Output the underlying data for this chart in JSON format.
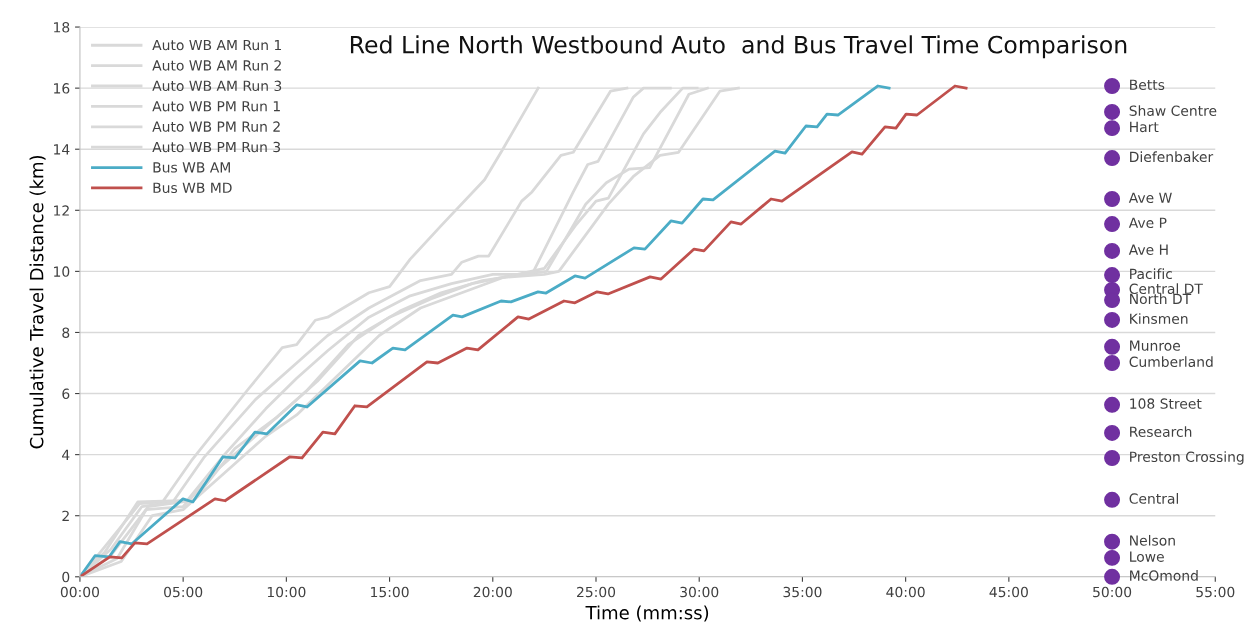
{
  "chart_data": {
    "type": "line",
    "title": "Red Line North Westbound Auto  and Bus Travel Time Comparison",
    "xlabel": "Time (mm:ss)",
    "ylabel": "Cumulative Travel Distance (km)",
    "xlim": [
      0,
      55
    ],
    "ylim": [
      0,
      18
    ],
    "xticks": [
      {
        "value": 0,
        "label": "00:00"
      },
      {
        "value": 5,
        "label": "05:00"
      },
      {
        "value": 10,
        "label": "10:00"
      },
      {
        "value": 15,
        "label": "15:00"
      },
      {
        "value": 20,
        "label": "20:00"
      },
      {
        "value": 25,
        "label": "25:00"
      },
      {
        "value": 30,
        "label": "30:00"
      },
      {
        "value": 35,
        "label": "35:00"
      },
      {
        "value": 40,
        "label": "40:00"
      },
      {
        "value": 45,
        "label": "45:00"
      },
      {
        "value": 50,
        "label": "50:00"
      },
      {
        "value": 55,
        "label": "55:00"
      }
    ],
    "yticks": [
      0,
      2,
      4,
      6,
      8,
      10,
      12,
      14,
      16,
      18
    ],
    "grid": "y",
    "legend": "top left",
    "line_style": "solid",
    "series": [
      {
        "name": "Auto WB AM Run 1",
        "color": "#d9d9d9",
        "x": [
          0,
          1.1,
          2.9,
          4.0,
          5.4,
          8.1,
          9.8,
          10.5,
          11.4,
          12.0,
          14.0,
          15.0,
          16.0,
          17.5,
          19.6,
          20.4,
          22.2
        ],
        "values": [
          0,
          0.9,
          2.4,
          2.45,
          3.8,
          6.1,
          7.5,
          7.6,
          8.4,
          8.5,
          9.3,
          9.5,
          10.4,
          11.5,
          13.0,
          13.9,
          16.0
        ]
      },
      {
        "name": "Auto WB AM Run 2",
        "color": "#d9d9d9",
        "x": [
          0,
          1.5,
          3.0,
          4.5,
          6.0,
          8.5,
          10.5,
          12,
          14,
          16.5,
          18,
          18.5,
          19.3,
          19.8,
          21.4,
          21.9,
          23.3,
          23.9,
          25.7,
          26.5
        ],
        "values": [
          0,
          0.9,
          2.3,
          2.45,
          3.9,
          5.8,
          7.0,
          7.9,
          8.8,
          9.7,
          9.9,
          10.3,
          10.5,
          10.5,
          12.3,
          12.6,
          13.8,
          13.9,
          15.9,
          16.0
        ]
      },
      {
        "name": "Auto WB AM Run 3",
        "color": "#d9d9d9",
        "x": [
          0,
          1.2,
          2.8,
          5.2,
          7,
          9,
          10.5,
          12,
          14,
          16,
          18,
          20,
          21.9,
          23.9,
          24.6,
          25.1,
          26.8,
          27.3,
          28.6
        ],
        "values": [
          0,
          0.8,
          2.45,
          2.5,
          4.0,
          5.5,
          6.5,
          7.4,
          8.5,
          9.2,
          9.6,
          9.9,
          9.9,
          12.6,
          13.5,
          13.6,
          15.7,
          16.0,
          16.0
        ]
      },
      {
        "name": "Auto WB PM Run 1",
        "color": "#d9d9d9",
        "x": [
          0,
          1.5,
          3.2,
          5.0,
          6.8,
          9,
          11,
          13,
          15,
          17,
          19,
          21.2,
          22.5,
          24.0,
          25.0,
          25.6,
          27.3,
          28.1,
          29.2,
          29.9
        ],
        "values": [
          0,
          0.7,
          2.2,
          2.3,
          3.6,
          4.9,
          6.1,
          7.6,
          8.5,
          9.1,
          9.6,
          9.9,
          10.1,
          11.5,
          12.3,
          12.4,
          14.5,
          15.2,
          16.0,
          16.0
        ]
      },
      {
        "name": "Auto WB PM Run 2",
        "color": "#d9d9d9",
        "x": [
          0,
          1.8,
          3.3,
          5.5,
          7.5,
          9.5,
          11.5,
          13.5,
          15.5,
          17.5,
          19.5,
          21.5,
          22.6,
          24.5,
          25.5,
          26.6,
          27.6,
          29.5,
          30.4
        ],
        "values": [
          0,
          0.6,
          2.3,
          2.5,
          4.2,
          5.2,
          6.4,
          7.9,
          8.7,
          9.3,
          9.7,
          9.9,
          10.0,
          12.2,
          12.9,
          13.35,
          13.4,
          15.8,
          16.0
        ]
      },
      {
        "name": "Auto WB PM Run 3",
        "color": "#d9d9d9",
        "x": [
          0,
          2.0,
          3.5,
          5.0,
          7,
          9,
          10.5,
          12.5,
          14.5,
          16.5,
          18.5,
          20.5,
          22.5,
          23.2,
          25.6,
          26.8,
          28.1,
          29.0,
          31.0,
          31.9
        ],
        "values": [
          0,
          0.5,
          2.0,
          2.2,
          3.4,
          4.6,
          5.3,
          6.6,
          7.9,
          8.8,
          9.3,
          9.8,
          9.9,
          10.0,
          12.2,
          13.1,
          13.8,
          13.9,
          15.9,
          16.0
        ]
      },
      {
        "name": "Bus WB AM",
        "color": "#4bacc6",
        "x": [
          0,
          0.73,
          1.41,
          1.94,
          2.52,
          4.99,
          5.47,
          6.93,
          7.51,
          8.48,
          9.06,
          10.51,
          11.0,
          13.57,
          14.15,
          15.16,
          15.75,
          18.07,
          18.51,
          20.4,
          20.88,
          22.19,
          22.58,
          23.98,
          24.47,
          26.84,
          27.37,
          28.63,
          29.17,
          30.18,
          30.67,
          33.67,
          34.16,
          35.17,
          35.71,
          36.19,
          36.72,
          38.66,
          39.2
        ],
        "values": [
          0,
          0.69,
          0.65,
          1.15,
          1.08,
          2.55,
          2.45,
          3.93,
          3.89,
          4.74,
          4.68,
          5.63,
          5.56,
          7.07,
          7.0,
          7.49,
          7.43,
          8.57,
          8.51,
          9.03,
          9.0,
          9.33,
          9.29,
          9.85,
          9.78,
          10.77,
          10.73,
          11.65,
          11.58,
          12.37,
          12.34,
          13.94,
          13.87,
          14.76,
          14.73,
          15.15,
          15.12,
          16.07,
          16.0
        ]
      },
      {
        "name": "Bus WB MD",
        "color": "#c0504d",
        "x": [
          0,
          1.45,
          2.03,
          2.66,
          3.25,
          6.54,
          7.03,
          10.17,
          10.76,
          11.77,
          12.35,
          13.32,
          13.9,
          16.81,
          17.34,
          18.75,
          19.28,
          21.22,
          21.75,
          23.45,
          23.98,
          25.05,
          25.58,
          27.62,
          28.15,
          29.75,
          30.23,
          31.54,
          32.03,
          33.48,
          34.01,
          37.4,
          37.89,
          39.0,
          39.53,
          40.02,
          40.55,
          42.39,
          42.93
        ],
        "values": [
          0,
          0.65,
          0.62,
          1.11,
          1.08,
          2.55,
          2.49,
          3.93,
          3.89,
          4.74,
          4.68,
          5.6,
          5.56,
          7.04,
          7.0,
          7.49,
          7.43,
          8.51,
          8.44,
          9.03,
          8.97,
          9.33,
          9.26,
          9.82,
          9.75,
          10.73,
          10.67,
          11.62,
          11.55,
          12.37,
          12.3,
          13.91,
          13.84,
          14.73,
          14.69,
          15.15,
          15.12,
          16.07,
          16.0
        ]
      },
      {
        "type": "scatter",
        "marker": "circle",
        "color": "#7030a0",
        "x": [
          50,
          50,
          50,
          50,
          50,
          50,
          50,
          50,
          50,
          50,
          50,
          50,
          50,
          50,
          50,
          50,
          50,
          50,
          50,
          50
        ],
        "values": [
          16.07,
          15.22,
          14.69,
          13.71,
          12.37,
          11.55,
          10.67,
          9.88,
          9.39,
          9.06,
          8.41,
          7.53,
          7.0,
          5.63,
          4.71,
          3.89,
          2.52,
          1.15,
          0.62,
          0
        ]
      }
    ],
    "annotations": [
      "Betts",
      "Shaw Centre",
      "Hart",
      "Diefenbaker",
      "Ave W",
      "Ave P",
      "Ave H",
      "Pacific",
      "Central DT",
      "North DT",
      "Kinsmen",
      "Munroe",
      "Cumberland",
      "108 Street",
      "Research",
      "Preston Crossing",
      "Central",
      "Nelson",
      "Lowe",
      "McOmond"
    ]
  }
}
